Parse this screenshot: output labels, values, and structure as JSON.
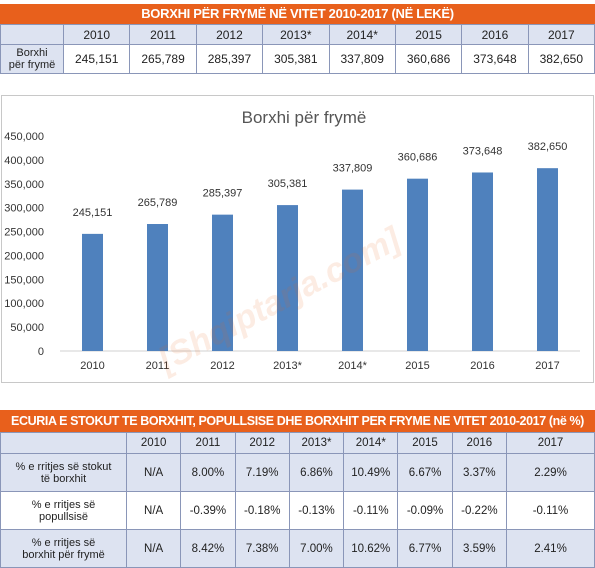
{
  "top_table": {
    "title": "BORXHI PËR FRYMË NË VITET 2010-2017 (NË LEKË)",
    "years": [
      "2010",
      "2011",
      "2012",
      "2013*",
      "2014*",
      "2015",
      "2016",
      "2017"
    ],
    "row_label_line1": "Borxhi",
    "row_label_line2": "për frymë",
    "values": [
      "245,151",
      "265,789",
      "285,397",
      "305,381",
      "337,809",
      "360,686",
      "373,648",
      "382,650"
    ]
  },
  "watermark": "[Shqiptarja.com]",
  "chart_data": {
    "type": "bar",
    "title": "Borxhi për frymë",
    "categories": [
      "2010",
      "2011",
      "2012",
      "2013*",
      "2014*",
      "2015",
      "2016",
      "2017"
    ],
    "values": [
      245151,
      265789,
      285397,
      305381,
      337809,
      360686,
      373648,
      382650
    ],
    "data_labels": [
      "245,151",
      "265,789",
      "285,397",
      "305,381",
      "337,809",
      "360,686",
      "373,648",
      "382,650"
    ],
    "ylim": [
      0,
      450000
    ],
    "y_ticks": [
      0,
      50000,
      100000,
      150000,
      200000,
      250000,
      300000,
      350000,
      400000,
      450000
    ],
    "y_tick_labels": [
      "0",
      "50,000",
      "100,000",
      "150,000",
      "200,000",
      "250,000",
      "300,000",
      "350,000",
      "400,000",
      "450,000"
    ],
    "bar_color": "#4f81bd",
    "grid": false,
    "legend": "none"
  },
  "bottom_table": {
    "title": "ECURIA E STOKUT TE BORXHIT, POPULLSISE DHE BORXHIT PER FRYME NE VITET 2010-2017 (në %)",
    "years": [
      "2010",
      "2011",
      "2012",
      "2013*",
      "2014*",
      "2015",
      "2016",
      "2017"
    ],
    "rows": [
      {
        "label_line1": "% e rritjes së stokut",
        "label_line2": "të borxhit",
        "values": [
          "N/A",
          "8.00%",
          "7.19%",
          "6.86%",
          "10.49%",
          "6.67%",
          "3.37%",
          "2.29%"
        ]
      },
      {
        "label_line1": "% e rritjes së",
        "label_line2": "popullsisë",
        "values": [
          "N/A",
          "-0.39%",
          "-0.18%",
          "-0.13%",
          "-0.11%",
          "-0.09%",
          "-0.22%",
          "-0.11%"
        ]
      },
      {
        "label_line1": "% e rritjes së",
        "label_line2": "borxhit për frymë",
        "values": [
          "N/A",
          "8.42%",
          "7.38%",
          "7.00%",
          "10.62%",
          "6.77%",
          "3.59%",
          "2.41%"
        ]
      }
    ]
  },
  "colors": {
    "title_bar": "#e8601c",
    "header_fill": "#dde3f1",
    "border": "#8a96b8"
  }
}
